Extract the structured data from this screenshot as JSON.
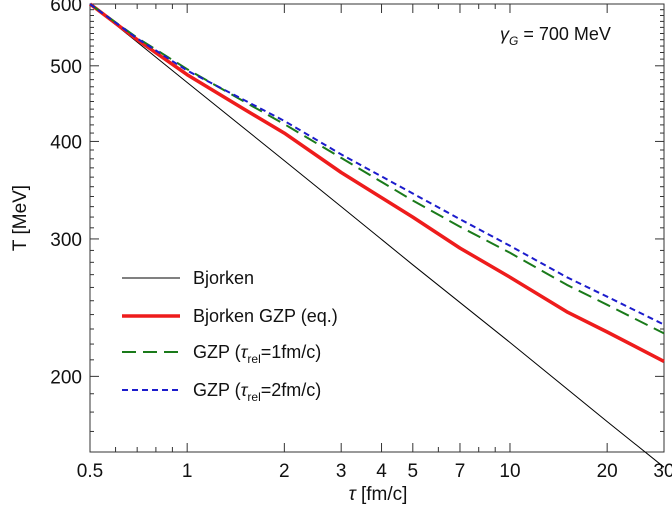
{
  "chart_data": {
    "type": "line",
    "xscale": "log",
    "yscale": "log",
    "xlim": [
      0.5,
      30
    ],
    "ylim": [
      160,
      600
    ],
    "xlabel": "τ [fm/c]",
    "ylabel": "T [MeV]",
    "x_ticks": [
      0.5,
      1,
      2,
      3,
      4,
      5,
      7,
      10,
      20,
      30
    ],
    "x_tick_labels": [
      "0.5",
      "1",
      "2",
      "3",
      "4",
      "5",
      "7",
      "10",
      "20",
      "30"
    ],
    "y_ticks": [
      200,
      300,
      400,
      500,
      600
    ],
    "y_tick_labels": [
      "200",
      "300",
      "400",
      "500",
      "600"
    ],
    "annotation": "γ_G = 700 MeV",
    "grid": false,
    "legend_position": "lower-left",
    "series": [
      {
        "name": "Bjorken",
        "color": "#000000",
        "style": "solid-thin",
        "x": [
          0.5,
          1,
          2,
          3,
          5,
          10,
          20,
          30
        ],
        "y": [
          600,
          476,
          378,
          330,
          278,
          221,
          175,
          153
        ]
      },
      {
        "name": "Bjorken GZP (eq.)",
        "color": "#ee1c1c",
        "style": "solid-thick",
        "x": [
          0.5,
          0.7,
          1,
          1.5,
          2,
          3,
          5,
          7,
          10,
          15,
          20,
          30
        ],
        "y": [
          600,
          540,
          487,
          440,
          410,
          365,
          320,
          292,
          268,
          242,
          228,
          209
        ]
      },
      {
        "name": "GZP (τrel=1fm/c)",
        "color": "#1a7a1a",
        "style": "long-dash",
        "x": [
          0.5,
          0.7,
          1,
          1.5,
          2,
          3,
          5,
          7,
          10,
          15,
          20,
          30
        ],
        "y": [
          600,
          543,
          495,
          450,
          421,
          381,
          336,
          311,
          288,
          262,
          247,
          227
        ]
      },
      {
        "name": "GZP (τrel=2fm/c)",
        "color": "#1c1ccc",
        "style": "short-dash",
        "x": [
          0.5,
          0.7,
          1,
          1.5,
          2,
          3,
          5,
          7,
          10,
          15,
          20,
          30
        ],
        "y": [
          600,
          542,
          493,
          452,
          425,
          385,
          343,
          318,
          294,
          268,
          253,
          233
        ]
      }
    ],
    "legend": [
      {
        "text": "Bjorken"
      },
      {
        "text": "Bjorken GZP (eq.)"
      },
      {
        "pre": "GZP (",
        "tau": "τ",
        "sub": "rel",
        "post": "=1fm/c)"
      },
      {
        "pre": "GZP (",
        "tau": "τ",
        "sub": "rel",
        "post": "=2fm/c)"
      }
    ],
    "annotation_parts": {
      "gamma": "γ",
      "sub": "G",
      "rest": " = 700 MeV"
    },
    "xlabel_parts": {
      "tau": "τ",
      "rest": " [fm/c]"
    }
  }
}
